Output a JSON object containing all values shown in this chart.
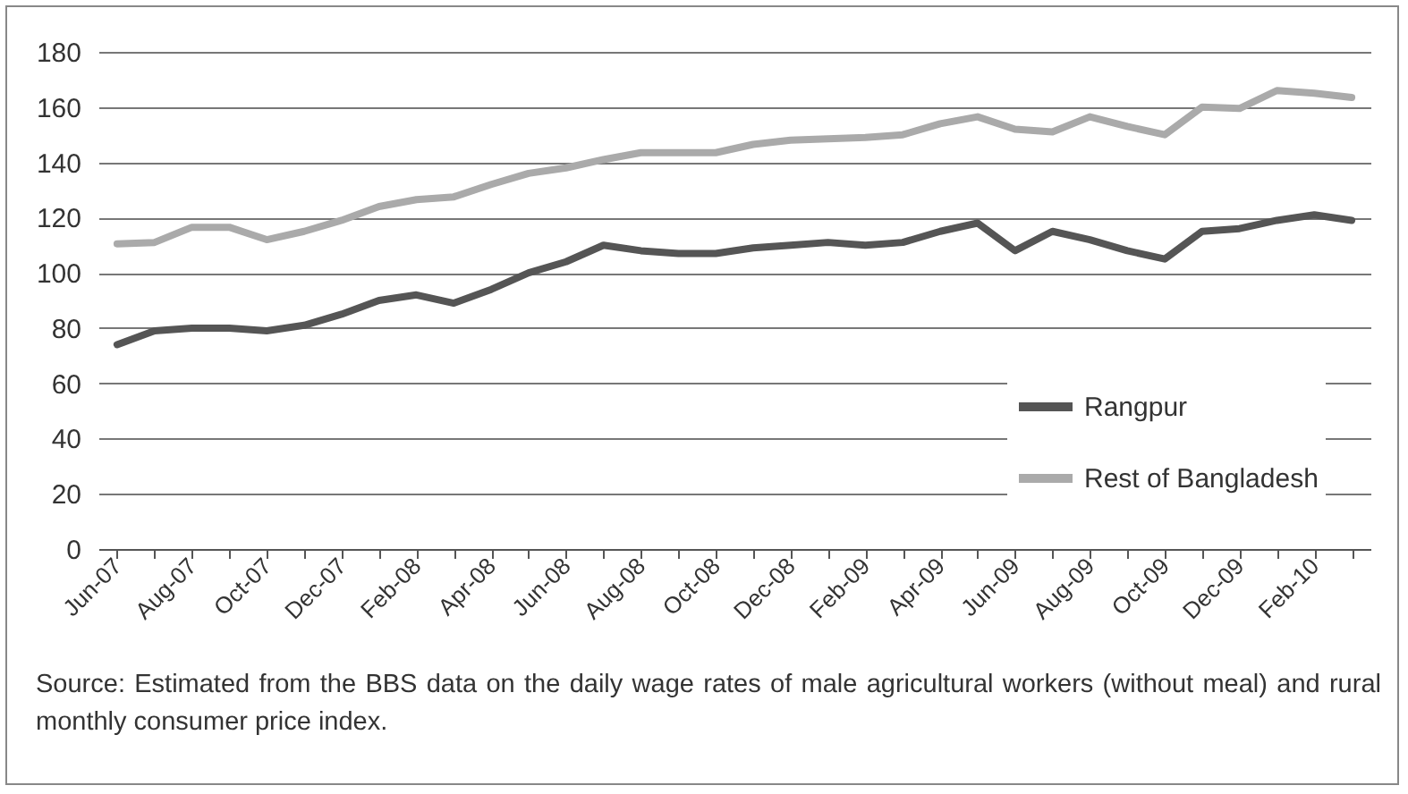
{
  "chart_data": {
    "type": "line",
    "categories": [
      "Jun-07",
      null,
      "Aug-07",
      null,
      "Oct-07",
      null,
      "Dec-07",
      null,
      "Feb-08",
      null,
      "Apr-08",
      null,
      "Jun-08",
      null,
      "Aug-08",
      null,
      "Oct-08",
      null,
      "Dec-08",
      null,
      "Feb-09",
      null,
      "Apr-09",
      null,
      "Jun-09",
      null,
      "Aug-09",
      null,
      "Oct-09",
      null,
      "Dec-09",
      null,
      "Feb-10",
      null
    ],
    "series": [
      {
        "name": "Rangpur",
        "color": "#555555",
        "values": [
          74,
          79,
          80,
          80,
          79,
          81,
          85,
          90,
          92,
          89,
          94,
          100,
          104,
          110,
          108,
          107,
          107,
          109,
          110,
          111,
          110,
          111,
          115,
          118,
          108,
          115,
          112,
          108,
          105,
          115,
          116,
          119,
          121,
          119
        ]
      },
      {
        "name": "Rest of Bangladesh",
        "color": "#aaaaaa",
        "values": [
          110.5,
          111,
          116.5,
          116.5,
          112,
          115,
          119,
          124,
          126.5,
          127.5,
          132,
          136,
          138,
          141,
          143.5,
          143.5,
          143.5,
          146.5,
          148,
          148.5,
          149,
          150,
          154,
          156.5,
          152,
          151,
          156.5,
          153,
          150,
          160,
          159.5,
          166,
          165,
          163.5
        ]
      }
    ],
    "ylim": [
      0,
      180
    ],
    "yticks": [
      0,
      20,
      40,
      60,
      80,
      100,
      120,
      140,
      160,
      180
    ],
    "grid": "y",
    "legend": "bottom right",
    "marker": "none",
    "line_style": "solid",
    "annotations": [
      "Source: Estimated from the BBS data on the daily wage rates of male agricultural workers (without meal) and rural monthly consumer price index."
    ]
  }
}
